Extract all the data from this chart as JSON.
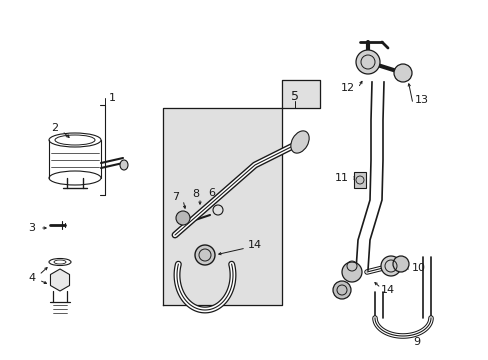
{
  "bg_color": "#ffffff",
  "line_color": "#1a1a1a",
  "gray_fill": "#e0e0e0",
  "fig_w": 4.89,
  "fig_h": 3.6,
  "dpi": 100
}
